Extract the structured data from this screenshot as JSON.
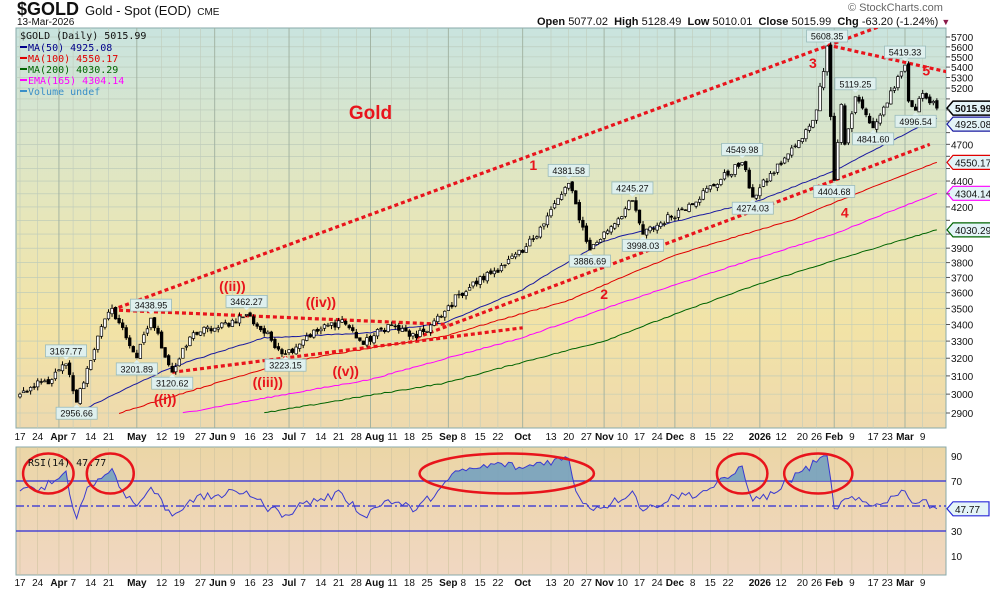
{
  "header": {
    "symbol": "$GOLD",
    "name": "Gold - Spot (EOD)",
    "exchange": "CME",
    "date": "13-Mar-2026",
    "watermark": "© StockCharts.com",
    "open_label": "Open",
    "open": "5077.02",
    "high_label": "High",
    "high": "5128.49",
    "low_label": "Low",
    "low": "5010.01",
    "close_label": "Close",
    "close": "5015.99",
    "chg_label": "Chg",
    "chg": "-63.20 (-1.24%)",
    "chg_icon": "down-triangle-icon"
  },
  "legend": {
    "main": "$GOLD (Daily) 5015.99",
    "items": [
      {
        "label": "MA(50) 4925.08",
        "color": "#00008b"
      },
      {
        "label": "MA(100) 4550.17",
        "color": "#e00000"
      },
      {
        "label": "MA(200) 4030.29",
        "color": "#006400"
      },
      {
        "label": "EMA(165) 4304.14",
        "color": "#ff00ff"
      },
      {
        "label": "Volume undef",
        "color": "#3a8fc8"
      }
    ],
    "rsi": "RSI(14) 47.77"
  },
  "chart_data": {
    "type": "candlestick",
    "y_scale": "log",
    "ylim": [
      2900,
      5700
    ],
    "y_ticks": [
      2900,
      3000,
      3100,
      3200,
      3300,
      3400,
      3500,
      3600,
      3700,
      3800,
      3900,
      4000,
      4100,
      4200,
      4300,
      4400,
      4500,
      4600,
      4700,
      4800,
      4900,
      5000,
      5100,
      5200,
      5300,
      5400,
      5500,
      5600,
      5700
    ],
    "grid": true,
    "x_ticks": [
      {
        "label": "17",
        "date": "2025-03-17"
      },
      {
        "label": "24",
        "date": "2025-03-24"
      },
      {
        "label": "Apr",
        "date": "2025-04-01",
        "bold": true
      },
      {
        "label": "7",
        "date": "2025-04-07"
      },
      {
        "label": "14",
        "date": "2025-04-14"
      },
      {
        "label": "21",
        "date": "2025-04-21"
      },
      {
        "label": "May",
        "date": "2025-05-01",
        "bold": true
      },
      {
        "label": "12",
        "date": "2025-05-12"
      },
      {
        "label": "19",
        "date": "2025-05-19"
      },
      {
        "label": "27",
        "date": "2025-05-27"
      },
      {
        "label": "Jun",
        "date": "2025-06-02",
        "bold": true
      },
      {
        "label": "9",
        "date": "2025-06-09"
      },
      {
        "label": "16",
        "date": "2025-06-16"
      },
      {
        "label": "23",
        "date": "2025-06-23"
      },
      {
        "label": "Jul",
        "date": "2025-07-01",
        "bold": true
      },
      {
        "label": "7",
        "date": "2025-07-07"
      },
      {
        "label": "14",
        "date": "2025-07-14"
      },
      {
        "label": "21",
        "date": "2025-07-21"
      },
      {
        "label": "28",
        "date": "2025-07-28"
      },
      {
        "label": "Aug",
        "date": "2025-08-01",
        "bold": true
      },
      {
        "label": "11",
        "date": "2025-08-11"
      },
      {
        "label": "18",
        "date": "2025-08-18"
      },
      {
        "label": "25",
        "date": "2025-08-25"
      },
      {
        "label": "Sep",
        "date": "2025-09-02",
        "bold": true
      },
      {
        "label": "8",
        "date": "2025-09-08"
      },
      {
        "label": "15",
        "date": "2025-09-15"
      },
      {
        "label": "22",
        "date": "2025-09-22"
      },
      {
        "label": "Oct",
        "date": "2025-10-01",
        "bold": true
      },
      {
        "label": "13",
        "date": "2025-10-13"
      },
      {
        "label": "20",
        "date": "2025-10-20"
      },
      {
        "label": "27",
        "date": "2025-10-27"
      },
      {
        "label": "Nov",
        "date": "2025-11-03",
        "bold": true
      },
      {
        "label": "10",
        "date": "2025-11-10"
      },
      {
        "label": "17",
        "date": "2025-11-17"
      },
      {
        "label": "24",
        "date": "2025-11-24"
      },
      {
        "label": "Dec",
        "date": "2025-12-01",
        "bold": true
      },
      {
        "label": "8",
        "date": "2025-12-08"
      },
      {
        "label": "15",
        "date": "2025-12-15"
      },
      {
        "label": "22",
        "date": "2025-12-22"
      },
      {
        "label": "2026",
        "date": "2026-01-02",
        "bold": true
      },
      {
        "label": "12",
        "date": "2026-01-12"
      },
      {
        "label": "20",
        "date": "2026-01-20"
      },
      {
        "label": "26",
        "date": "2026-01-26"
      },
      {
        "label": "Feb",
        "date": "2026-02-02",
        "bold": true
      },
      {
        "label": "9",
        "date": "2026-02-09"
      },
      {
        "label": "17",
        "date": "2026-02-17"
      },
      {
        "label": "23",
        "date": "2026-02-23"
      },
      {
        "label": "Mar",
        "date": "2026-03-02",
        "bold": true
      },
      {
        "label": "9",
        "date": "2026-03-09"
      }
    ],
    "price_path": [
      {
        "date": "2025-03-17",
        "price": 3000
      },
      {
        "date": "2025-03-21",
        "price": 3040
      },
      {
        "date": "2025-03-28",
        "price": 3080
      },
      {
        "date": "2025-04-03",
        "price": 3167.77,
        "kind": "high",
        "label": "3167.77"
      },
      {
        "date": "2025-04-08",
        "price": 2956.66,
        "kind": "low",
        "label": "2956.66"
      },
      {
        "date": "2025-04-16",
        "price": 3330
      },
      {
        "date": "2025-04-22",
        "price": 3500
      },
      {
        "date": "2025-05-01",
        "price": 3201.89,
        "kind": "low",
        "label": "3201.89"
      },
      {
        "date": "2025-05-07",
        "price": 3438.95,
        "kind": "high",
        "label": "3438.95"
      },
      {
        "date": "2025-05-15",
        "price": 3120.62,
        "kind": "low",
        "label": "3120.62"
      },
      {
        "date": "2025-05-23",
        "price": 3350
      },
      {
        "date": "2025-06-03",
        "price": 3380
      },
      {
        "date": "2025-06-13",
        "price": 3462.27,
        "kind": "high",
        "label": "3462.27"
      },
      {
        "date": "2025-06-30",
        "price": 3223.15,
        "kind": "low",
        "label": "3223.15"
      },
      {
        "date": "2025-07-08",
        "price": 3330
      },
      {
        "date": "2025-07-22",
        "price": 3430
      },
      {
        "date": "2025-07-30",
        "price": 3280
      },
      {
        "date": "2025-08-08",
        "price": 3400
      },
      {
        "date": "2025-08-20",
        "price": 3320
      },
      {
        "date": "2025-08-29",
        "price": 3450
      },
      {
        "date": "2025-09-05",
        "price": 3590
      },
      {
        "date": "2025-09-23",
        "price": 3780
      },
      {
        "date": "2025-10-01",
        "price": 3870
      },
      {
        "date": "2025-10-08",
        "price": 4050
      },
      {
        "date": "2025-10-20",
        "price": 4381.58,
        "kind": "high",
        "label": "4381.58"
      },
      {
        "date": "2025-10-28",
        "price": 3886.69,
        "kind": "low",
        "label": "3886.69"
      },
      {
        "date": "2025-11-13",
        "price": 4245.27,
        "kind": "high",
        "label": "4245.27"
      },
      {
        "date": "2025-11-18",
        "price": 3998.03,
        "kind": "low",
        "label": "3998.03"
      },
      {
        "date": "2025-12-05",
        "price": 4220
      },
      {
        "date": "2025-12-26",
        "price": 4549.98,
        "kind": "high",
        "label": "4549.98"
      },
      {
        "date": "2025-12-31",
        "price": 4274.03,
        "kind": "low",
        "label": "4274.03"
      },
      {
        "date": "2026-01-14",
        "price": 4620
      },
      {
        "date": "2026-01-20",
        "price": 4750
      },
      {
        "date": "2026-01-26",
        "price": 5000
      },
      {
        "date": "2026-01-29",
        "price": 5608.35,
        "kind": "high",
        "label": "5608.35"
      },
      {
        "date": "2026-02-02",
        "price": 4404.68,
        "kind": "low",
        "label": "4404.68"
      },
      {
        "date": "2026-02-04",
        "price": 5050
      },
      {
        "date": "2026-02-05",
        "price": 4700
      },
      {
        "date": "2026-02-10",
        "price": 5119.25,
        "kind": "high",
        "label": "5119.25"
      },
      {
        "date": "2026-02-17",
        "price": 4841.6,
        "kind": "low",
        "label": "4841.60"
      },
      {
        "date": "2026-02-25",
        "price": 5200
      },
      {
        "date": "2026-03-02",
        "price": 5419.33,
        "kind": "high",
        "label": "5419.33"
      },
      {
        "date": "2026-03-03",
        "price": 5080
      },
      {
        "date": "2026-03-05",
        "price": 4996.54,
        "kind": "low",
        "label": "4996.54"
      },
      {
        "date": "2026-03-09",
        "price": 5150
      },
      {
        "date": "2026-03-12",
        "price": 5077
      },
      {
        "date": "2026-03-13",
        "price": 5015.99
      }
    ],
    "overlays": [
      {
        "name": "MA(50)",
        "value": "4925.08",
        "color": "#1a1aa0",
        "points": [
          [
            "2025-04-08",
            2900
          ],
          [
            "2025-05-15",
            3150
          ],
          [
            "2025-06-20",
            3320
          ],
          [
            "2025-08-01",
            3350
          ],
          [
            "2025-09-01",
            3410
          ],
          [
            "2025-10-01",
            3620
          ],
          [
            "2025-11-01",
            3950
          ],
          [
            "2025-12-01",
            4090
          ],
          [
            "2026-01-02",
            4250
          ],
          [
            "2026-02-02",
            4480
          ],
          [
            "2026-03-13",
            4925.08
          ]
        ]
      },
      {
        "name": "MA(100)",
        "value": "4550.17",
        "color": "#e00000",
        "points": [
          [
            "2025-04-24",
            2900
          ],
          [
            "2025-07-01",
            3180
          ],
          [
            "2025-09-01",
            3330
          ],
          [
            "2025-10-20",
            3550
          ],
          [
            "2025-12-01",
            3850
          ],
          [
            "2026-01-15",
            4100
          ],
          [
            "2026-03-13",
            4550.17
          ]
        ]
      },
      {
        "name": "EMA(165)",
        "value": "4304.14",
        "color": "#ff00ff",
        "points": [
          [
            "2025-05-20",
            2900
          ],
          [
            "2025-08-01",
            3080
          ],
          [
            "2025-10-01",
            3320
          ],
          [
            "2025-12-01",
            3650
          ],
          [
            "2026-02-01",
            4000
          ],
          [
            "2026-03-13",
            4304.14
          ]
        ]
      },
      {
        "name": "MA(200)",
        "value": "4030.29",
        "color": "#006400",
        "points": [
          [
            "2025-06-20",
            2900
          ],
          [
            "2025-09-01",
            3060
          ],
          [
            "2025-11-01",
            3300
          ],
          [
            "2026-01-01",
            3650
          ],
          [
            "2026-03-13",
            4030.29
          ]
        ]
      }
    ],
    "trendlines": [
      [
        [
          "2025-04-22",
          3490
        ],
        [
          "2026-03-11",
          6005
        ]
      ],
      [
        [
          "2025-08-20",
          3320
        ],
        [
          "2026-03-11",
          4700
        ]
      ],
      [
        [
          "2025-04-22",
          3490
        ],
        [
          "2025-09-02",
          3400
        ]
      ],
      [
        [
          "2025-05-15",
          3120
        ],
        [
          "2025-10-01",
          3380
        ]
      ],
      [
        [
          "2026-01-29",
          5620
        ],
        [
          "2026-03-27",
          5300
        ]
      ]
    ],
    "annotations": [
      {
        "text": "Gold",
        "date": "2025-08-01",
        "price": 4920,
        "size": "large"
      },
      {
        "text": "1",
        "date": "2025-10-06",
        "price": 4490
      },
      {
        "text": "2",
        "date": "2025-11-03",
        "price": 3560
      },
      {
        "text": "3",
        "date": "2026-01-23",
        "price": 5390
      },
      {
        "text": "4",
        "date": "2026-02-05",
        "price": 4120
      },
      {
        "text": "5",
        "date": "2026-03-10",
        "price": 5800
      },
      {
        "text": "((i))",
        "date": "2025-05-13",
        "price": 2990
      },
      {
        "text": "((ii))",
        "date": "2025-06-09",
        "price": 3520
      },
      {
        "text": "((iii))",
        "date": "2025-06-23",
        "price": 3040
      },
      {
        "text": "((iv))",
        "date": "2025-07-14",
        "price": 3510
      },
      {
        "text": "((v))",
        "date": "2025-07-23",
        "price": 3100
      }
    ],
    "rsi": {
      "name": "RSI(14)",
      "value": "47.77",
      "ylim": [
        0,
        100
      ],
      "ticks": [
        10,
        30,
        70,
        90
      ],
      "levels": [
        30,
        50,
        70
      ],
      "color": "#3a3ad0",
      "points": [
        [
          "2025-03-17",
          62
        ],
        [
          "2025-03-25",
          65
        ],
        [
          "2025-04-01",
          72
        ],
        [
          "2025-04-03",
          78
        ],
        [
          "2025-04-07",
          48
        ],
        [
          "2025-04-08",
          40
        ],
        [
          "2025-04-11",
          65
        ],
        [
          "2025-04-17",
          72
        ],
        [
          "2025-04-22",
          80
        ],
        [
          "2025-04-25",
          62
        ],
        [
          "2025-05-01",
          50
        ],
        [
          "2025-05-07",
          65
        ],
        [
          "2025-05-15",
          42
        ],
        [
          "2025-05-22",
          55
        ],
        [
          "2025-06-02",
          58
        ],
        [
          "2025-06-13",
          62
        ],
        [
          "2025-06-20",
          50
        ],
        [
          "2025-06-30",
          43
        ],
        [
          "2025-07-07",
          52
        ],
        [
          "2025-07-22",
          60
        ],
        [
          "2025-07-30",
          42
        ],
        [
          "2025-08-08",
          55
        ],
        [
          "2025-08-20",
          47
        ],
        [
          "2025-08-29",
          65
        ],
        [
          "2025-09-05",
          78
        ],
        [
          "2025-09-12",
          80
        ],
        [
          "2025-09-23",
          84
        ],
        [
          "2025-10-01",
          80
        ],
        [
          "2025-10-08",
          85
        ],
        [
          "2025-10-20",
          88
        ],
        [
          "2025-10-22",
          62
        ],
        [
          "2025-10-28",
          48
        ],
        [
          "2025-11-05",
          52
        ],
        [
          "2025-11-13",
          62
        ],
        [
          "2025-11-18",
          46
        ],
        [
          "2025-12-01",
          58
        ],
        [
          "2025-12-10",
          60
        ],
        [
          "2025-12-22",
          72
        ],
        [
          "2025-12-26",
          82
        ],
        [
          "2025-12-31",
          54
        ],
        [
          "2026-01-08",
          60
        ],
        [
          "2026-01-14",
          70
        ],
        [
          "2026-01-20",
          78
        ],
        [
          "2026-01-26",
          85
        ],
        [
          "2026-01-29",
          90
        ],
        [
          "2026-02-02",
          48
        ],
        [
          "2026-02-06",
          56
        ],
        [
          "2026-02-17",
          50
        ],
        [
          "2026-02-25",
          58
        ],
        [
          "2026-03-02",
          62
        ],
        [
          "2026-03-05",
          52
        ],
        [
          "2026-03-09",
          55
        ],
        [
          "2026-03-13",
          47.77
        ]
      ],
      "circled_ranges": [
        [
          "2025-03-19",
          "2025-04-04"
        ],
        [
          "2025-04-14",
          "2025-04-29"
        ],
        [
          "2025-08-22",
          "2025-10-28"
        ],
        [
          "2025-12-18",
          "2026-01-05"
        ],
        [
          "2026-01-14",
          "2026-02-06"
        ]
      ]
    }
  }
}
